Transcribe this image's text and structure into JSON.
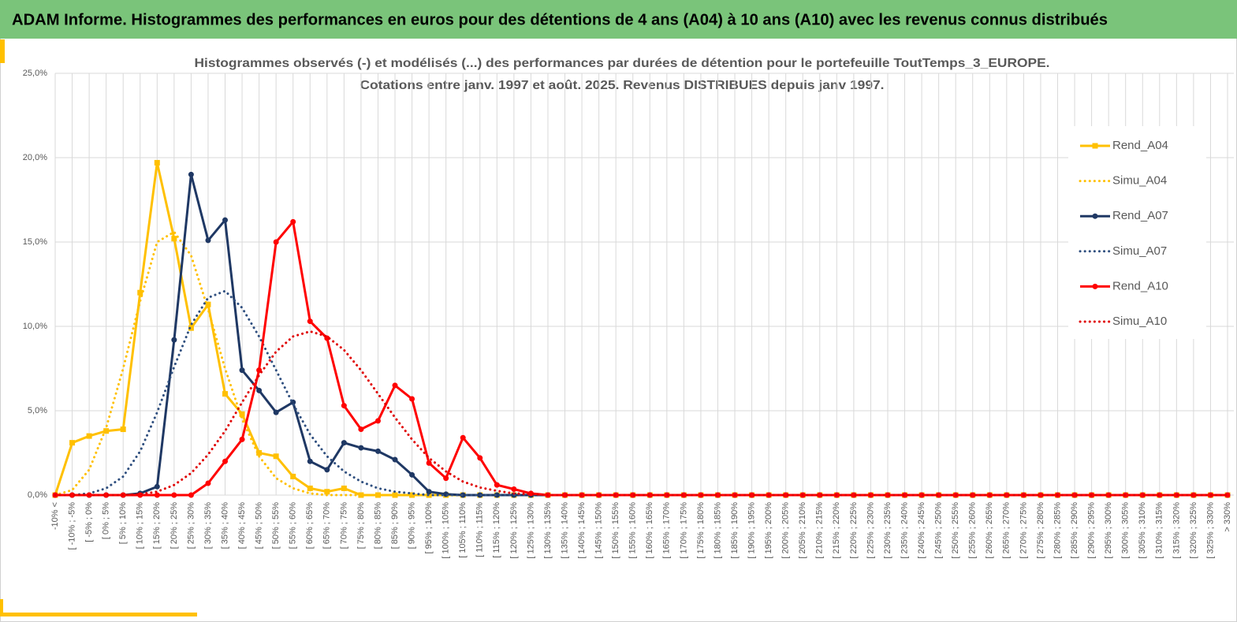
{
  "header": {
    "title": "ADAM Informe. Histogrammes des performances en euros pour des détentions de 4 ans (A04) à 10 ans (A10) avec les revenus connus distribués"
  },
  "chart_data": {
    "type": "line",
    "title": "Histogrammes observés (-) et modélisés (...) des performances  par durées de détention pour  le portefeuille ToutTemps_3_EUROPE.",
    "subtitle": "Cotations  entre janv. 1997 et août. 2025. Revenus DISTRIBUES depuis janv 1997.",
    "categories": [
      "-10% <",
      "[ -10% ; -5%",
      "[ -5% ; 0%",
      "[ 0% ; 5%",
      "[ 5% ; 10%",
      "[ 10% ; 15%",
      "[ 15% ; 20%",
      "[ 20% ; 25%",
      "[ 25% ; 30%",
      "[ 30% ; 35%",
      "[ 35% ; 40%",
      "[ 40% ; 45%",
      "[ 45% ; 50%",
      "[ 50% ; 55%",
      "[ 55% ; 60%",
      "[ 60% ; 65%",
      "[ 65% ; 70%",
      "[ 70% ; 75%",
      "[ 75% ; 80%",
      "[ 80% ; 85%",
      "[ 85% ; 90%",
      "[ 90% ; 95%",
      "[ 95% ; 100%",
      "[ 100% ; 105%",
      "[ 105% ; 110%",
      "[ 110% ; 115%",
      "[ 115% ; 120%",
      "[ 120% ; 125%",
      "[ 125% ; 130%",
      "[ 130% ; 135%",
      "[ 135% ; 140%",
      "[ 140% ; 145%",
      "[ 145% ; 150%",
      "[ 150% ; 155%",
      "[ 155% ; 160%",
      "[ 160% ; 165%",
      "[ 165% ; 170%",
      "[ 170% ; 175%",
      "[ 175% ; 180%",
      "[ 180% ; 185%",
      "[ 185% ; 190%",
      "[ 190% ; 195%",
      "[ 195% ; 200%",
      "[ 200% ; 205%",
      "[ 205% ; 210%",
      "[ 210% ; 215%",
      "[ 215% ; 220%",
      "[ 220% ; 225%",
      "[ 225% ; 230%",
      "[ 230% ; 235%",
      "[ 235% ; 240%",
      "[ 240% ; 245%",
      "[ 245% ; 250%",
      "[ 250% ; 255%",
      "[ 255% ; 260%",
      "[ 260% ; 265%",
      "[ 265% ; 270%",
      "[ 270% ; 275%",
      "[ 275% ; 280%",
      "[ 280% ; 285%",
      "[ 285% ; 290%",
      "[ 290% ; 295%",
      "[ 295% ; 300%",
      "[ 300% ; 305%",
      "[ 305% ; 310%",
      "[ 310% ; 315%",
      "[ 315% ; 320%",
      "[ 320% ; 325%",
      "[ 325% ; 330%",
      "> 330%"
    ],
    "series": [
      {
        "name": "Rend_A04",
        "color": "#FFC000",
        "style": "solid",
        "marker": "square",
        "values": [
          0,
          3.1,
          3.5,
          3.8,
          3.9,
          12.0,
          19.7,
          15.2,
          9.9,
          11.3,
          6.0,
          4.8,
          2.5,
          2.3,
          1.1,
          0.4,
          0.2,
          0.4,
          0,
          0,
          0,
          0,
          0,
          0,
          0,
          0,
          0,
          0,
          0,
          0,
          0,
          0,
          0,
          0,
          0,
          0,
          0,
          0,
          0,
          0,
          0,
          0,
          0,
          0,
          0,
          0,
          0,
          0,
          0,
          0,
          0,
          0,
          0,
          0,
          0,
          0,
          0,
          0,
          0,
          0,
          0,
          0,
          0,
          0,
          0,
          0,
          0,
          0,
          0,
          0
        ]
      },
      {
        "name": "Simu_A04",
        "color": "#FFC000",
        "style": "dotted",
        "values": [
          0,
          0.3,
          1.5,
          4.0,
          7.5,
          11.5,
          15.0,
          15.6,
          14.2,
          11.0,
          7.5,
          4.5,
          2.3,
          1.0,
          0.4,
          0.1,
          0,
          0,
          0,
          0,
          0,
          0,
          0,
          0,
          0,
          0,
          0,
          0,
          0,
          0,
          0,
          0,
          0,
          0,
          0,
          0,
          0,
          0,
          0,
          0,
          0,
          0,
          0,
          0,
          0,
          0,
          0,
          0,
          0,
          0,
          0,
          0,
          0,
          0,
          0,
          0,
          0,
          0,
          0,
          0,
          0,
          0,
          0,
          0,
          0,
          0,
          0,
          0,
          0,
          0
        ]
      },
      {
        "name": "Rend_A07",
        "color": "#1F3864",
        "style": "solid",
        "marker": "circle",
        "values": [
          0,
          0,
          0,
          0,
          0,
          0.1,
          0.5,
          9.2,
          19.0,
          15.1,
          16.3,
          7.4,
          6.2,
          4.9,
          5.5,
          2.0,
          1.5,
          3.1,
          2.8,
          2.6,
          2.1,
          1.2,
          0.2,
          0.05,
          0,
          0,
          0,
          0,
          0,
          0,
          0,
          0,
          0,
          0,
          0,
          0,
          0,
          0,
          0,
          0,
          0,
          0,
          0,
          0,
          0,
          0,
          0,
          0,
          0,
          0,
          0,
          0,
          0,
          0,
          0,
          0,
          0,
          0,
          0,
          0,
          0,
          0,
          0,
          0,
          0,
          0,
          0,
          0,
          0,
          0
        ]
      },
      {
        "name": "Simu_A07",
        "color": "#2F4F7F",
        "style": "dotted",
        "values": [
          0,
          0,
          0.1,
          0.4,
          1.1,
          2.6,
          4.9,
          7.6,
          10.1,
          11.7,
          12.1,
          11.1,
          9.4,
          7.4,
          5.4,
          3.6,
          2.3,
          1.4,
          0.8,
          0.4,
          0.2,
          0.1,
          0,
          0,
          0,
          0,
          0,
          0,
          0,
          0,
          0,
          0,
          0,
          0,
          0,
          0,
          0,
          0,
          0,
          0,
          0,
          0,
          0,
          0,
          0,
          0,
          0,
          0,
          0,
          0,
          0,
          0,
          0,
          0,
          0,
          0,
          0,
          0,
          0,
          0,
          0,
          0,
          0,
          0,
          0,
          0,
          0,
          0,
          0,
          0
        ]
      },
      {
        "name": "Rend_A10",
        "color": "#FF0000",
        "style": "solid",
        "marker": "circle",
        "values": [
          0,
          0,
          0,
          0,
          0,
          0,
          0,
          0,
          0,
          0.7,
          2.0,
          3.3,
          7.4,
          15.0,
          16.2,
          10.3,
          9.3,
          5.3,
          3.9,
          4.4,
          6.5,
          5.7,
          1.9,
          1.0,
          3.4,
          2.2,
          0.6,
          0.35,
          0.1,
          0,
          0,
          0,
          0,
          0,
          0,
          0,
          0,
          0,
          0,
          0,
          0,
          0,
          0,
          0,
          0,
          0,
          0,
          0,
          0,
          0,
          0,
          0,
          0,
          0,
          0,
          0,
          0,
          0,
          0,
          0,
          0,
          0,
          0,
          0,
          0,
          0,
          0,
          0,
          0,
          0
        ]
      },
      {
        "name": "Simu_A10",
        "color": "#E00000",
        "style": "dotted",
        "values": [
          0,
          0,
          0,
          0,
          0,
          0.05,
          0.2,
          0.6,
          1.3,
          2.4,
          3.8,
          5.5,
          7.1,
          8.5,
          9.4,
          9.7,
          9.4,
          8.6,
          7.4,
          6.0,
          4.6,
          3.3,
          2.2,
          1.4,
          0.8,
          0.45,
          0.25,
          0.1,
          0.05,
          0,
          0,
          0,
          0,
          0,
          0,
          0,
          0,
          0,
          0,
          0,
          0,
          0,
          0,
          0,
          0,
          0,
          0,
          0,
          0,
          0,
          0,
          0,
          0,
          0,
          0,
          0,
          0,
          0,
          0,
          0,
          0,
          0,
          0,
          0,
          0,
          0,
          0,
          0,
          0,
          0
        ]
      }
    ],
    "ylim": [
      0,
      25
    ],
    "yticks": [
      {
        "value": 0,
        "label": "0,0%"
      },
      {
        "value": 5,
        "label": "5,0%"
      },
      {
        "value": 10,
        "label": "10,0%"
      },
      {
        "value": 15,
        "label": "15,0%"
      },
      {
        "value": 20,
        "label": "20,0%"
      },
      {
        "value": 25,
        "label": "25,0%"
      }
    ],
    "grid": true,
    "legend": "right"
  }
}
